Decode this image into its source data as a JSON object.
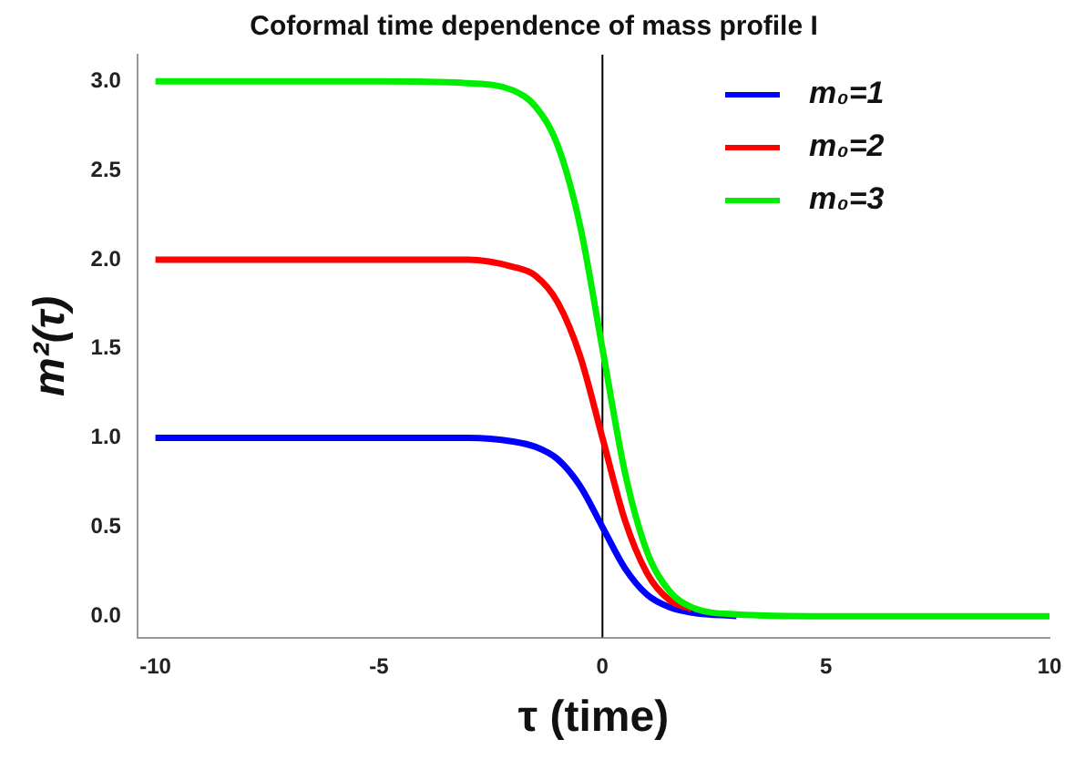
{
  "chart_data": {
    "type": "line",
    "title": "Coformal time dependence of mass profile I",
    "xlabel": "τ (time)",
    "ylabel": "m²(τ)",
    "x": [
      -10,
      -5,
      -3,
      -2,
      -1.5,
      -1,
      -0.5,
      0,
      0.5,
      1,
      1.5,
      2,
      3,
      5,
      10
    ],
    "series": [
      {
        "name": "m₀=1",
        "color": "#0000ff",
        "values": [
          1,
          1,
          1,
          0.98,
          0.95,
          0.88,
          0.73,
          0.5,
          0.27,
          0.12,
          0.05,
          0.02,
          0,
          null,
          null
        ]
      },
      {
        "name": "m₀=2",
        "color": "#ff0000",
        "values": [
          2,
          2,
          2,
          1.96,
          1.91,
          1.76,
          1.46,
          1,
          0.54,
          0.24,
          0.09,
          0.04,
          null,
          null,
          null
        ]
      },
      {
        "name": "m₀=3",
        "color": "#00ee00",
        "values": [
          3,
          3,
          2.99,
          2.95,
          2.86,
          2.64,
          2.19,
          1.5,
          0.81,
          0.36,
          0.14,
          0.05,
          0.01,
          0,
          0
        ]
      }
    ],
    "xlim": [
      -10.4,
      10
    ],
    "xticks": [
      -10,
      -5,
      0,
      5,
      10
    ],
    "ylim": [
      -0.12,
      3.15
    ],
    "yticks": [
      {
        "value": 0,
        "label": "0.0"
      },
      0.5,
      {
        "value": 1,
        "label": "1.0"
      },
      1.5,
      {
        "value": 2,
        "label": "2.0"
      },
      2.5,
      {
        "value": 3,
        "label": "3.0"
      }
    ],
    "ref_lines": [
      {
        "axis": "x",
        "value": 0,
        "color": "#000000"
      }
    ],
    "legend": "top right",
    "grid": false,
    "marker": "none",
    "line_style": "solid"
  }
}
